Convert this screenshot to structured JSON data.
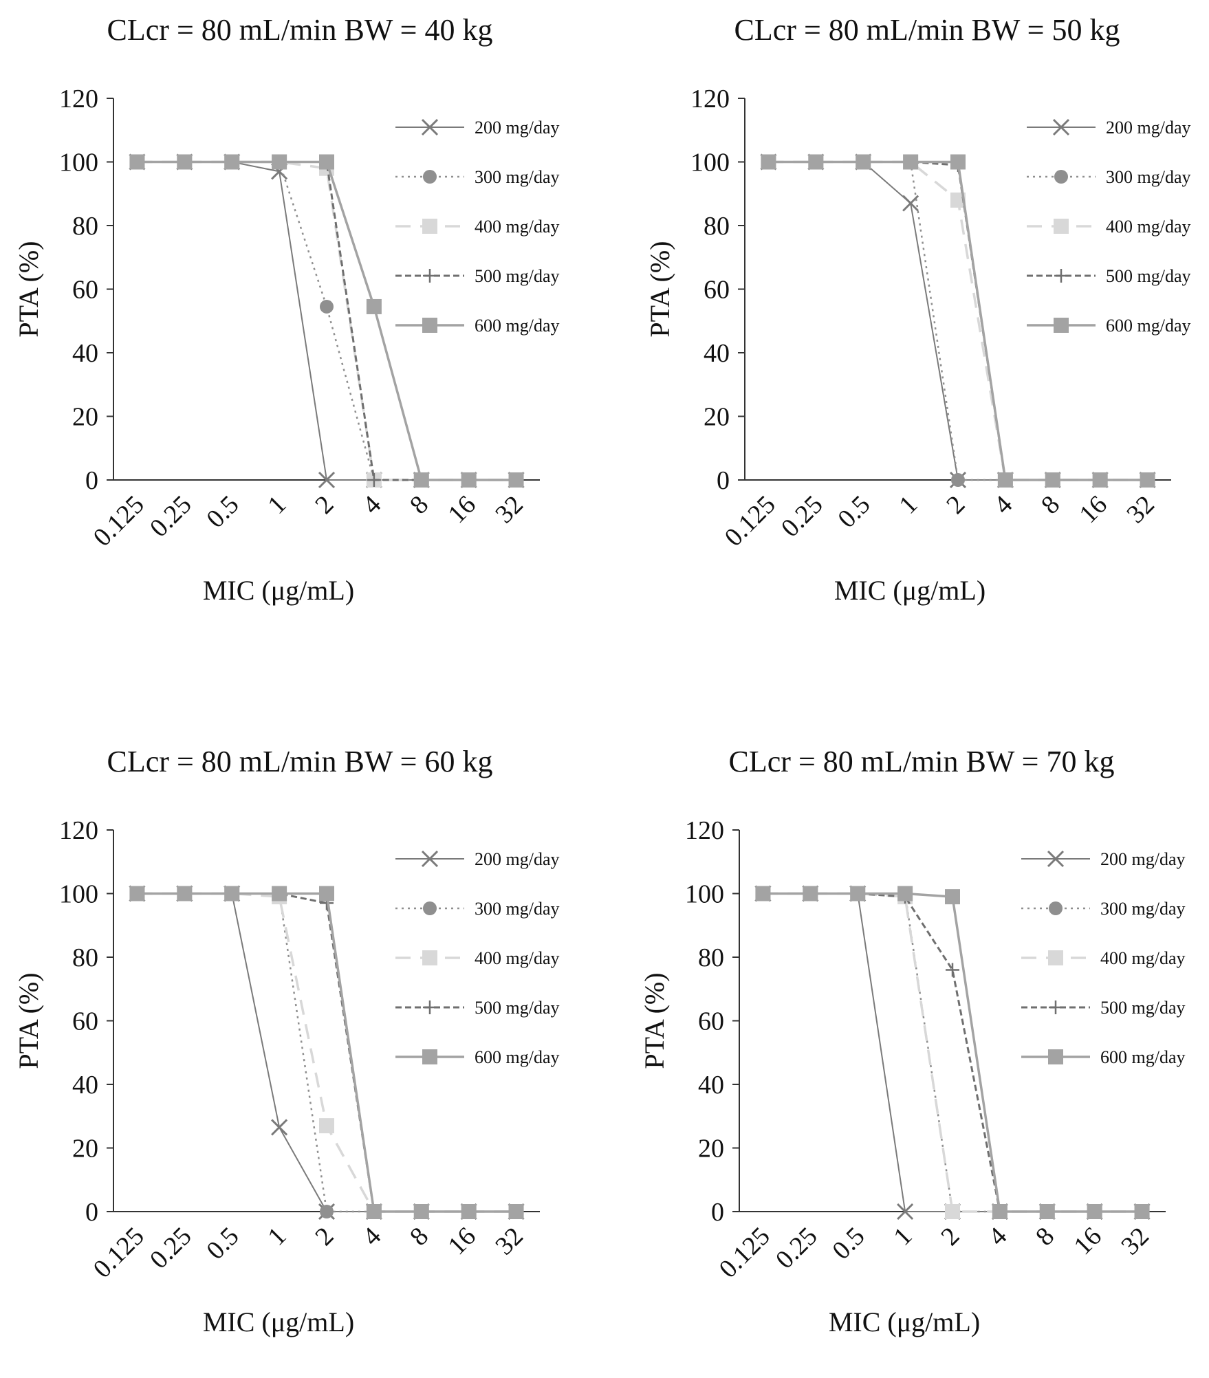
{
  "figure": {
    "colors": {
      "dose_200": "#7a7a7a",
      "dose_300": "#8f8f8f",
      "dose_400": "#d8d8d8",
      "dose_500": "#6f6f6f",
      "dose_600": "#a3a3a3",
      "axis": "#333333"
    }
  },
  "chart_data": [
    {
      "type": "line",
      "title": "CLcr = 80 mL/min BW = 40 kg",
      "xlabel": "MIC (μg/mL)",
      "ylabel": "PTA (%)",
      "categories": [
        "0.125",
        "0.25",
        "0.5",
        "1",
        "2",
        "4",
        "8",
        "16",
        "32"
      ],
      "yticks": [
        "0",
        "20",
        "40",
        "60",
        "80",
        "100",
        "120"
      ],
      "ylim": [
        0,
        120
      ],
      "legend_position": "top-right",
      "series": [
        {
          "name": "200 mg/day",
          "values": [
            100,
            100,
            100,
            97,
            0,
            0,
            0,
            0,
            0
          ]
        },
        {
          "name": "300 mg/day",
          "values": [
            100,
            100,
            100,
            100,
            54.5,
            0,
            0,
            0,
            0
          ]
        },
        {
          "name": "400 mg/day",
          "values": [
            100,
            100,
            100,
            100,
            98,
            0,
            0,
            0,
            0
          ]
        },
        {
          "name": "500 mg/day",
          "values": [
            100,
            100,
            100,
            100,
            100,
            0,
            0,
            0,
            0
          ]
        },
        {
          "name": "600 mg/day",
          "values": [
            100,
            100,
            100,
            100,
            100,
            54.5,
            0,
            0,
            0
          ]
        }
      ]
    },
    {
      "type": "line",
      "title": "CLcr = 80 mL/min BW = 50 kg",
      "xlabel": "MIC (μg/mL)",
      "ylabel": "PTA (%)",
      "categories": [
        "0.125",
        "0.25",
        "0.5",
        "1",
        "2",
        "4",
        "8",
        "16",
        "32"
      ],
      "yticks": [
        "0",
        "20",
        "40",
        "60",
        "80",
        "100",
        "120"
      ],
      "ylim": [
        0,
        120
      ],
      "legend_position": "top-right",
      "series": [
        {
          "name": "200 mg/day",
          "values": [
            100,
            100,
            100,
            87,
            0,
            0,
            0,
            0,
            0
          ]
        },
        {
          "name": "300 mg/day",
          "values": [
            100,
            100,
            100,
            100,
            0,
            0,
            0,
            0,
            0
          ]
        },
        {
          "name": "400 mg/day",
          "values": [
            100,
            100,
            100,
            100,
            88,
            0,
            0,
            0,
            0
          ]
        },
        {
          "name": "500 mg/day",
          "values": [
            100,
            100,
            100,
            100,
            99,
            0,
            0,
            0,
            0
          ]
        },
        {
          "name": "600 mg/day",
          "values": [
            100,
            100,
            100,
            100,
            100,
            0,
            0,
            0,
            0
          ]
        }
      ]
    },
    {
      "type": "line",
      "title": "CLcr = 80 mL/min BW = 60 kg",
      "xlabel": "MIC (μg/mL)",
      "ylabel": "PTA (%)",
      "categories": [
        "0.125",
        "0.25",
        "0.5",
        "1",
        "2",
        "4",
        "8",
        "16",
        "32"
      ],
      "yticks": [
        "0",
        "20",
        "40",
        "60",
        "80",
        "100",
        "120"
      ],
      "ylim": [
        0,
        120
      ],
      "legend_position": "top-right",
      "series": [
        {
          "name": "200 mg/day",
          "values": [
            100,
            100,
            100,
            26.5,
            0,
            0,
            0,
            0,
            0
          ]
        },
        {
          "name": "300 mg/day",
          "values": [
            100,
            100,
            100,
            100,
            0,
            0,
            0,
            0,
            0
          ]
        },
        {
          "name": "400 mg/day",
          "values": [
            100,
            100,
            100,
            99,
            27,
            0,
            0,
            0,
            0
          ]
        },
        {
          "name": "500 mg/day",
          "values": [
            100,
            100,
            100,
            100,
            97,
            0,
            0,
            0,
            0
          ]
        },
        {
          "name": "600 mg/day",
          "values": [
            100,
            100,
            100,
            100,
            100,
            0,
            0,
            0,
            0
          ]
        }
      ]
    },
    {
      "type": "line",
      "title": "CLcr = 80 mL/min BW = 70 kg",
      "xlabel": "MIC (μg/mL)",
      "ylabel": "PTA (%)",
      "categories": [
        "0.125",
        "0.25",
        "0.5",
        "1",
        "2",
        "4",
        "8",
        "16",
        "32"
      ],
      "yticks": [
        "0",
        "20",
        "40",
        "60",
        "80",
        "100",
        "120"
      ],
      "ylim": [
        0,
        120
      ],
      "legend_position": "top-right",
      "series": [
        {
          "name": "200 mg/day",
          "values": [
            100,
            100,
            100,
            0,
            0,
            0,
            0,
            0,
            0
          ]
        },
        {
          "name": "300 mg/day",
          "values": [
            100,
            100,
            100,
            100,
            0,
            0,
            0,
            0,
            0
          ]
        },
        {
          "name": "400 mg/day",
          "values": [
            100,
            100,
            100,
            99,
            0,
            0,
            0,
            0,
            0
          ]
        },
        {
          "name": "500 mg/day",
          "values": [
            100,
            100,
            100,
            99,
            76,
            0,
            0,
            0,
            0
          ]
        },
        {
          "name": "600 mg/day",
          "values": [
            100,
            100,
            100,
            100,
            99,
            0,
            0,
            0,
            0
          ]
        }
      ]
    }
  ]
}
